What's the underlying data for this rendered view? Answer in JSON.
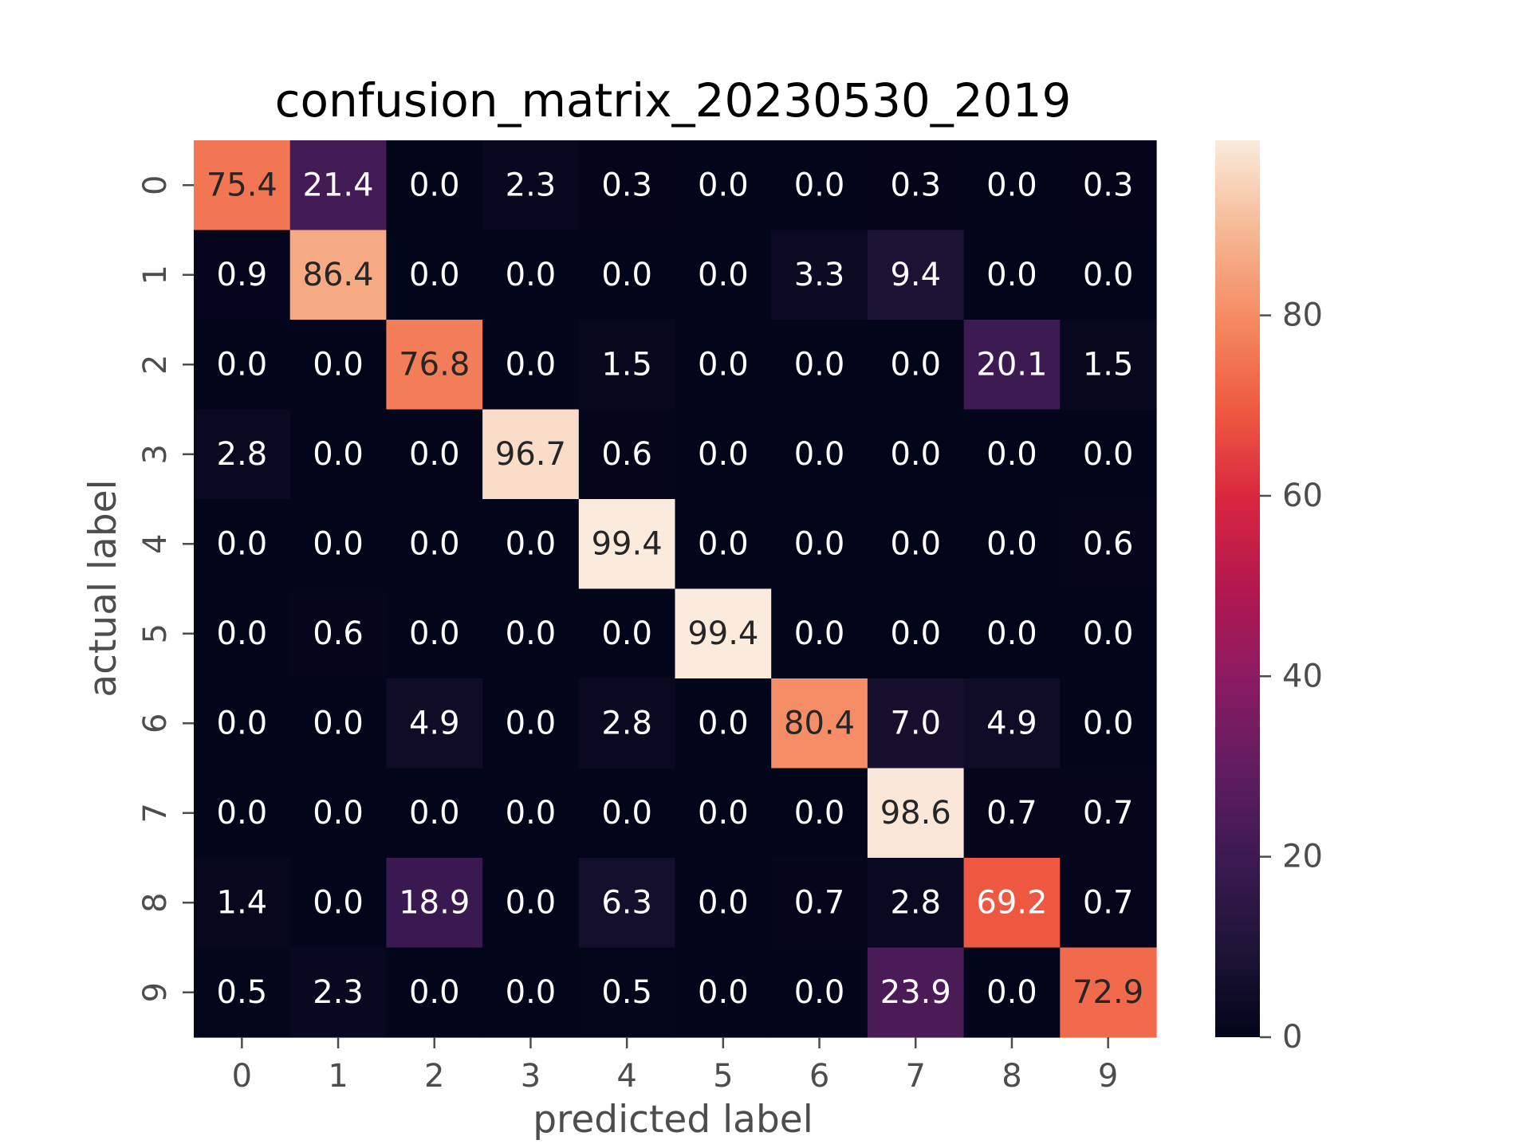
{
  "chart_data": {
    "type": "heatmap",
    "title": "confusion_matrix_20230530_2019",
    "xlabel": "predicted label",
    "ylabel": "actual label",
    "x_categories": [
      "0",
      "1",
      "2",
      "3",
      "4",
      "5",
      "6",
      "7",
      "8",
      "9"
    ],
    "y_categories": [
      "0",
      "1",
      "2",
      "3",
      "4",
      "5",
      "6",
      "7",
      "8",
      "9"
    ],
    "values": [
      [
        75.4,
        21.4,
        0.0,
        2.3,
        0.3,
        0.0,
        0.0,
        0.3,
        0.0,
        0.3
      ],
      [
        0.9,
        86.4,
        0.0,
        0.0,
        0.0,
        0.0,
        3.3,
        9.4,
        0.0,
        0.0
      ],
      [
        0.0,
        0.0,
        76.8,
        0.0,
        1.5,
        0.0,
        0.0,
        0.0,
        20.1,
        1.5
      ],
      [
        2.8,
        0.0,
        0.0,
        96.7,
        0.6,
        0.0,
        0.0,
        0.0,
        0.0,
        0.0
      ],
      [
        0.0,
        0.0,
        0.0,
        0.0,
        99.4,
        0.0,
        0.0,
        0.0,
        0.0,
        0.6
      ],
      [
        0.0,
        0.6,
        0.0,
        0.0,
        0.0,
        99.4,
        0.0,
        0.0,
        0.0,
        0.0
      ],
      [
        0.0,
        0.0,
        4.9,
        0.0,
        2.8,
        0.0,
        80.4,
        7.0,
        4.9,
        0.0
      ],
      [
        0.0,
        0.0,
        0.0,
        0.0,
        0.0,
        0.0,
        0.0,
        98.6,
        0.7,
        0.7
      ],
      [
        1.4,
        0.0,
        18.9,
        0.0,
        6.3,
        0.0,
        0.7,
        2.8,
        69.2,
        0.7
      ],
      [
        0.5,
        2.3,
        0.0,
        0.0,
        0.5,
        0.0,
        0.0,
        23.9,
        0.0,
        72.9
      ]
    ],
    "colorscale": "rocket",
    "colorbar": {
      "ticks": [
        "0",
        "20",
        "40",
        "60",
        "80"
      ],
      "range": [
        0,
        99.4
      ]
    },
    "grid": false,
    "legend": "none"
  }
}
